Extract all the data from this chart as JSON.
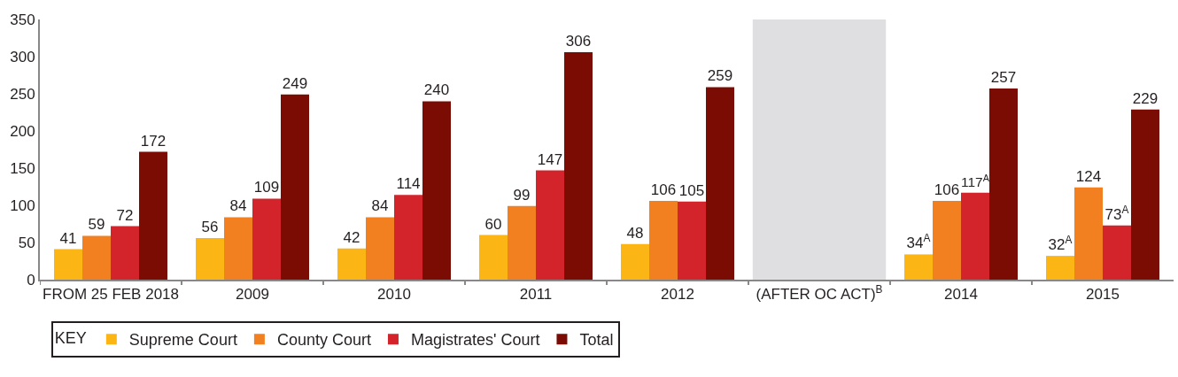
{
  "chart_data": {
    "type": "bar",
    "categories": [
      "FROM 25 FEB 2018",
      "2009",
      "2010",
      "2011",
      "2012",
      "(AFTER OC ACT)$^{B}$",
      "2014",
      "2015"
    ],
    "series": [
      {
        "name": "Supreme Court",
        "color": "#fbb616",
        "values": [
          41,
          56,
          42,
          60,
          48,
          null,
          34,
          32
        ],
        "value_labels": [
          "41",
          "56",
          "42",
          "60",
          "48",
          null,
          "34$^{A}$",
          "32$^{A}$"
        ]
      },
      {
        "name": "County Court",
        "color": "#f28021",
        "values": [
          59,
          84,
          84,
          99,
          106,
          null,
          106,
          124
        ],
        "value_labels": [
          "59",
          "84",
          "84",
          "99",
          "106",
          null,
          "106",
          "124"
        ]
      },
      {
        "name": "Magistrates' Court",
        "color": "#d3242c",
        "values": [
          72,
          109,
          114,
          147,
          105,
          null,
          117,
          73
        ],
        "value_labels": [
          "72",
          "109",
          "114",
          "147",
          "105",
          null,
          "117$^{A}$",
          "73$^{A}$"
        ]
      },
      {
        "name": "Total",
        "color": "#7b0c03",
        "values": [
          172,
          249,
          240,
          306,
          259,
          null,
          257,
          229
        ],
        "value_labels": [
          "172",
          "249",
          "240",
          "306",
          "259",
          null,
          "257",
          "229"
        ]
      }
    ],
    "ylim": [
      0,
      350
    ],
    "yticks": [
      0,
      50,
      100,
      150,
      200,
      250,
      300,
      350
    ],
    "bands": [
      {
        "axis": "x",
        "from": "(AFTER OC ACT)$^{B}$",
        "to": "(AFTER OC ACT)$^{B}$",
        "color": "#c9cacd"
      }
    ],
    "grid": false,
    "legend": "bottom",
    "legend_title": "KEY"
  }
}
